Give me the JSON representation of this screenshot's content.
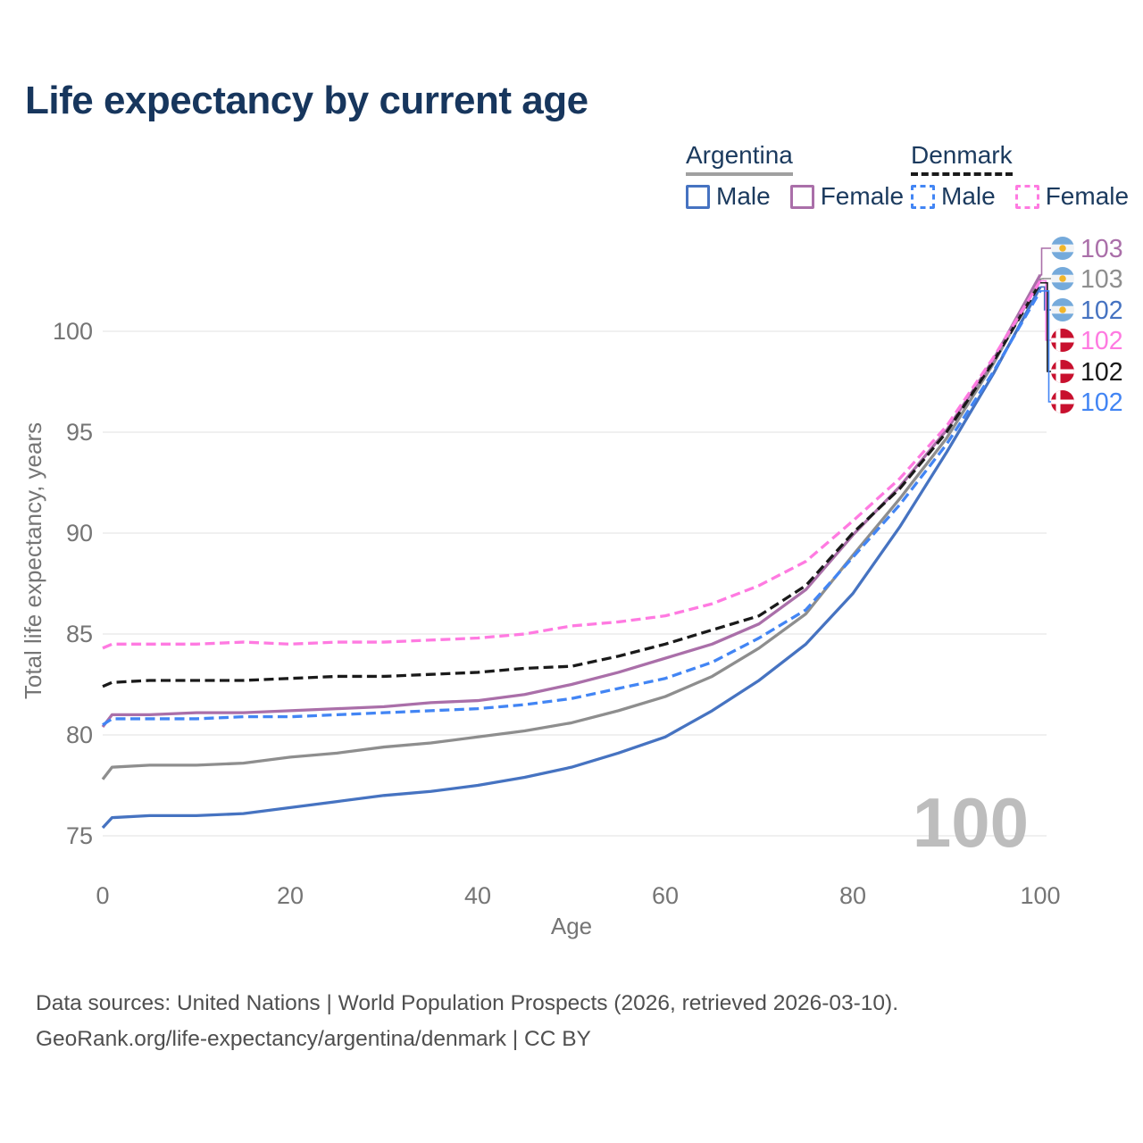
{
  "title": "Life expectancy by current age",
  "legend": {
    "groups": [
      {
        "name": "Argentina",
        "underline_series": "ar_both",
        "items": [
          {
            "label": "Male",
            "series": "ar_male"
          },
          {
            "label": "Female",
            "series": "ar_female"
          }
        ]
      },
      {
        "name": "Denmark",
        "underline_series": "dk_both",
        "items": [
          {
            "label": "Male",
            "series": "dk_male"
          },
          {
            "label": "Female",
            "series": "dk_female"
          }
        ]
      }
    ]
  },
  "chart_data": {
    "type": "line",
    "title": "Life expectancy by current age",
    "xlabel": "Age",
    "ylabel": "Total life expectancy, years",
    "xlim": [
      0,
      100
    ],
    "ylim": [
      73.5,
      104.5
    ],
    "xticks": [
      0,
      20,
      40,
      60,
      80,
      100
    ],
    "yticks": [
      75,
      80,
      85,
      90,
      95,
      100
    ],
    "grid": "horizontal",
    "legend_position": "top-right",
    "x": [
      0,
      1,
      5,
      10,
      15,
      20,
      25,
      30,
      35,
      40,
      45,
      50,
      55,
      60,
      65,
      70,
      75,
      80,
      85,
      90,
      95,
      100
    ],
    "series": [
      {
        "key": "ar_male",
        "country": "Argentina",
        "color": "#4673c1",
        "dashed": false,
        "values": [
          75.4,
          75.9,
          76.0,
          76.0,
          76.1,
          76.4,
          76.7,
          77.0,
          77.2,
          77.5,
          77.9,
          78.4,
          79.1,
          79.9,
          81.2,
          82.7,
          84.5,
          87.0,
          90.3,
          94.0,
          97.9,
          102.2
        ]
      },
      {
        "key": "ar_both",
        "country": "Argentina",
        "color": "#8e8e8e",
        "dashed": false,
        "values": [
          77.8,
          78.4,
          78.5,
          78.5,
          78.6,
          78.9,
          79.1,
          79.4,
          79.6,
          79.9,
          80.2,
          80.6,
          81.2,
          81.9,
          82.9,
          84.3,
          86.0,
          88.9,
          91.7,
          94.7,
          98.4,
          102.6
        ]
      },
      {
        "key": "ar_female",
        "country": "Argentina",
        "color": "#aa6fa9",
        "dashed": false,
        "values": [
          80.4,
          81.0,
          81.0,
          81.1,
          81.1,
          81.2,
          81.3,
          81.4,
          81.6,
          81.7,
          82.0,
          82.5,
          83.1,
          83.8,
          84.5,
          85.5,
          87.2,
          89.9,
          92.3,
          95.1,
          98.6,
          102.8
        ]
      },
      {
        "key": "dk_male",
        "country": "Denmark",
        "color": "#4285f4",
        "dashed": true,
        "values": [
          80.5,
          80.8,
          80.8,
          80.8,
          80.9,
          80.9,
          81.0,
          81.1,
          81.2,
          81.3,
          81.5,
          81.8,
          82.3,
          82.8,
          83.6,
          84.8,
          86.2,
          88.8,
          91.4,
          94.4,
          98.0,
          102.0
        ]
      },
      {
        "key": "dk_both",
        "country": "Denmark",
        "color": "#1a1a1a",
        "dashed": true,
        "values": [
          82.4,
          82.6,
          82.7,
          82.7,
          82.7,
          82.8,
          82.9,
          82.9,
          83.0,
          83.1,
          83.3,
          83.4,
          83.9,
          84.5,
          85.2,
          85.9,
          87.4,
          90.0,
          92.2,
          95.0,
          98.5,
          102.4
        ]
      },
      {
        "key": "dk_female",
        "country": "Denmark",
        "color": "#ff7ae1",
        "dashed": true,
        "values": [
          84.3,
          84.5,
          84.5,
          84.5,
          84.6,
          84.5,
          84.6,
          84.6,
          84.7,
          84.8,
          85.0,
          85.4,
          85.6,
          85.9,
          86.5,
          87.4,
          88.6,
          90.6,
          92.7,
          95.3,
          98.7,
          102.5
        ]
      }
    ]
  },
  "end_labels": [
    {
      "value": "103",
      "series": "ar_female",
      "country": "Argentina"
    },
    {
      "value": "103",
      "series": "ar_both",
      "country": "Argentina"
    },
    {
      "value": "102",
      "series": "ar_male",
      "country": "Argentina"
    },
    {
      "value": "102",
      "series": "dk_female",
      "country": "Denmark"
    },
    {
      "value": "102",
      "series": "dk_both",
      "country": "Denmark"
    },
    {
      "value": "102",
      "series": "dk_male",
      "country": "Denmark"
    }
  ],
  "annotations": {
    "watermark": "100"
  },
  "colors": {
    "title": "#17365d",
    "axis_text": "#757575",
    "gridline": "#e8e8e8",
    "watermark": "#bdbdbd",
    "flag_argentina_blue": "#75aadb",
    "flag_argentina_sun": "#f2b62a",
    "flag_denmark_red": "#c8102e"
  },
  "footer": {
    "line1": "Data sources: United Nations | World Population Prospects (2026, retrieved 2026-03-10).",
    "line2": "GeoRank.org/life-expectancy/argentina/denmark | CC BY"
  }
}
